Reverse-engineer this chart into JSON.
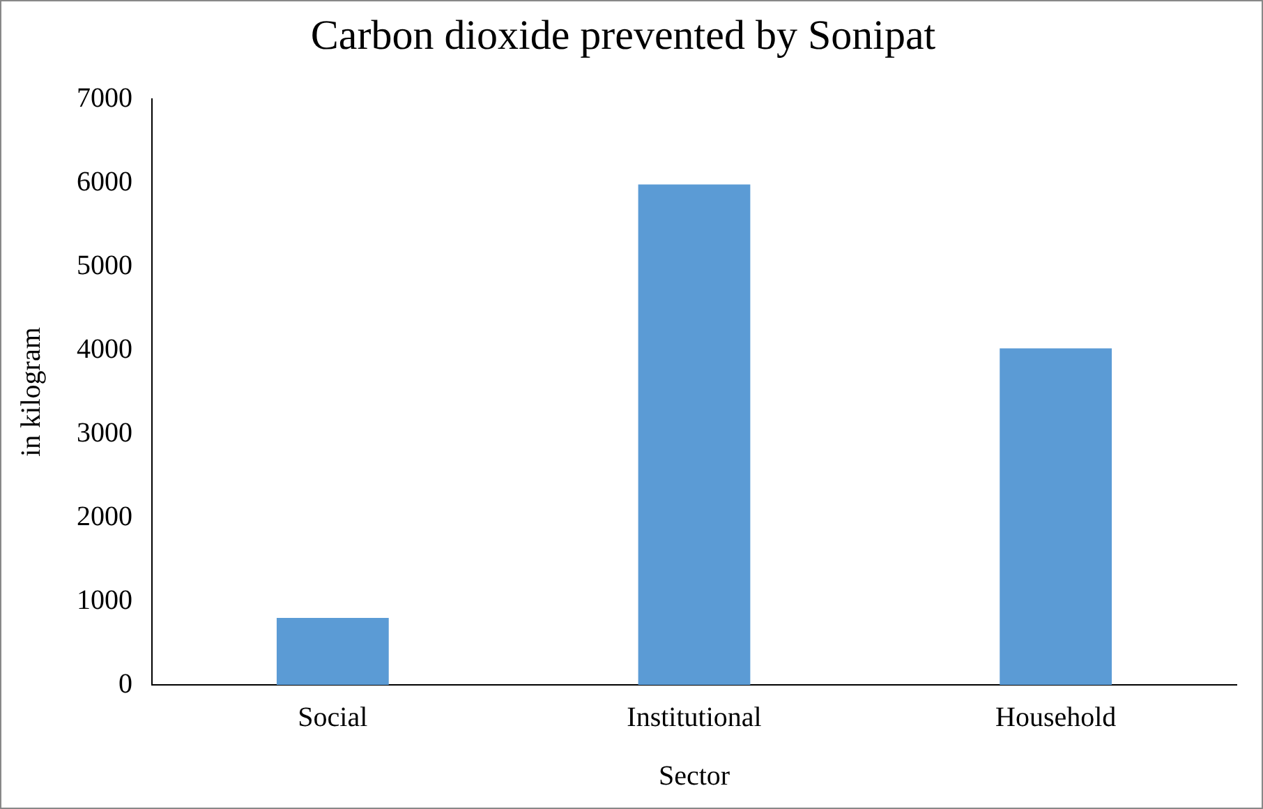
{
  "chart_data": {
    "type": "bar",
    "title": "Carbon dioxide prevented by Sonipat",
    "xlabel": "Sector",
    "ylabel": "in kilogram",
    "categories": [
      "Social",
      "Institutional",
      "Household"
    ],
    "values": [
      800,
      5980,
      4020
    ],
    "color": "#5b9bd5",
    "ylim": [
      0,
      7000
    ],
    "yticks": [
      0,
      1000,
      2000,
      3000,
      4000,
      5000,
      6000,
      7000
    ],
    "grid": false,
    "legend": false
  }
}
